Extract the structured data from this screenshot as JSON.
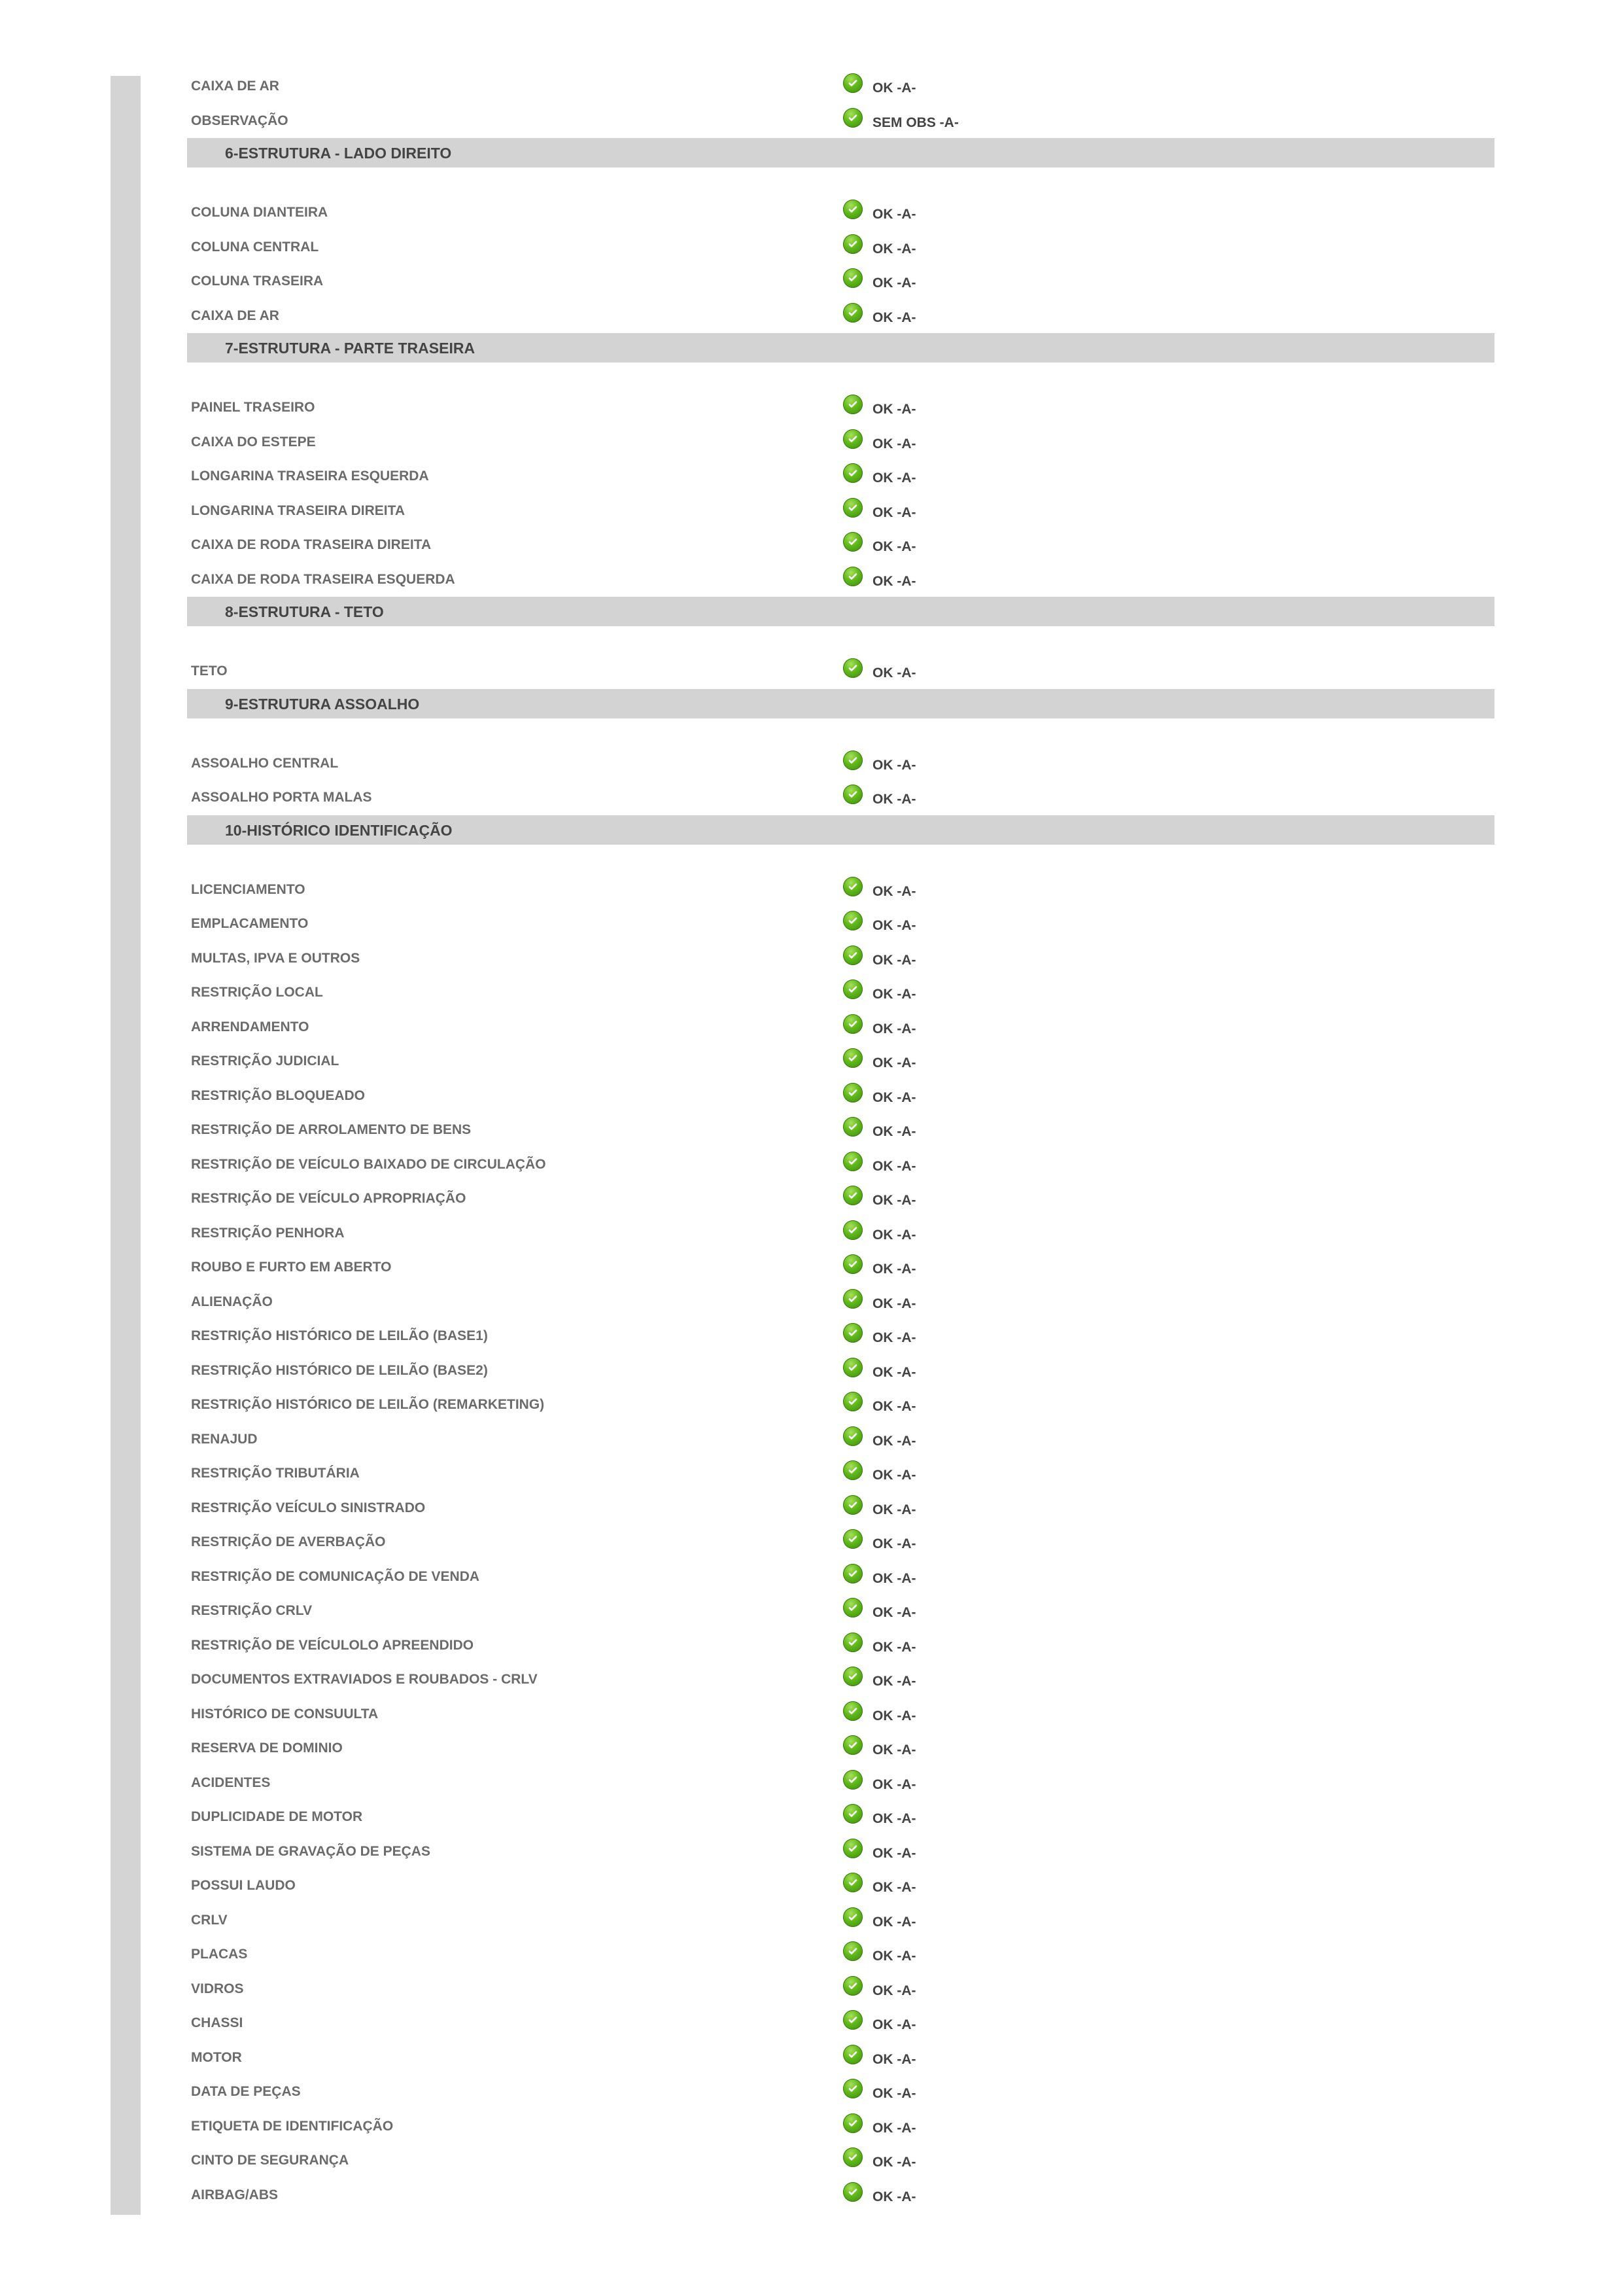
{
  "colors": {
    "section_bg": "#d3d3d3",
    "ok_icon": "#5fb819",
    "label": "#6b6b6b",
    "value": "#444444"
  },
  "icon": "check-circle-icon",
  "blocks": [
    {
      "type": "row",
      "label": "CAIXA DE AR",
      "value": "OK -A-"
    },
    {
      "type": "row",
      "label": "OBSERVAÇÃO",
      "value": "SEM OBS -A-"
    },
    {
      "type": "section",
      "title": "6-ESTRUTURA - LADO DIREITO"
    },
    {
      "type": "row",
      "label": "COLUNA DIANTEIRA",
      "value": "OK -A-"
    },
    {
      "type": "row",
      "label": "COLUNA CENTRAL",
      "value": "OK -A-"
    },
    {
      "type": "row",
      "label": "COLUNA TRASEIRA",
      "value": "OK -A-"
    },
    {
      "type": "row",
      "label": "CAIXA DE AR",
      "value": "OK -A-"
    },
    {
      "type": "section",
      "title": "7-ESTRUTURA - PARTE TRASEIRA"
    },
    {
      "type": "row",
      "label": "PAINEL TRASEIRO",
      "value": "OK -A-"
    },
    {
      "type": "row",
      "label": "CAIXA DO ESTEPE",
      "value": "OK -A-"
    },
    {
      "type": "row",
      "label": "LONGARINA TRASEIRA ESQUERDA",
      "value": "OK -A-"
    },
    {
      "type": "row",
      "label": "LONGARINA TRASEIRA DIREITA",
      "value": "OK -A-"
    },
    {
      "type": "row",
      "label": "CAIXA DE RODA TRASEIRA DIREITA",
      "value": "OK -A-"
    },
    {
      "type": "row",
      "label": "CAIXA DE RODA TRASEIRA ESQUERDA",
      "value": "OK -A-"
    },
    {
      "type": "section",
      "title": "8-ESTRUTURA - TETO"
    },
    {
      "type": "row",
      "label": "TETO",
      "value": "OK -A-"
    },
    {
      "type": "section",
      "title": "9-ESTRUTURA ASSOALHO"
    },
    {
      "type": "row",
      "label": "ASSOALHO CENTRAL",
      "value": "OK -A-"
    },
    {
      "type": "row",
      "label": "ASSOALHO PORTA MALAS",
      "value": "OK -A-"
    },
    {
      "type": "section",
      "title": "10-HISTÓRICO IDENTIFICAÇÃO"
    },
    {
      "type": "row",
      "label": "LICENCIAMENTO",
      "value": "OK -A-"
    },
    {
      "type": "row",
      "label": "EMPLACAMENTO",
      "value": "OK -A-"
    },
    {
      "type": "row",
      "label": "MULTAS, IPVA E OUTROS",
      "value": "OK -A-"
    },
    {
      "type": "row",
      "label": "RESTRIÇÃO LOCAL",
      "value": "OK -A-"
    },
    {
      "type": "row",
      "label": "ARRENDAMENTO",
      "value": "OK -A-"
    },
    {
      "type": "row",
      "label": "RESTRIÇÃO JUDICIAL",
      "value": "OK -A-"
    },
    {
      "type": "row",
      "label": "RESTRIÇÃO BLOQUEADO",
      "value": "OK -A-"
    },
    {
      "type": "row",
      "label": "RESTRIÇÃO DE ARROLAMENTO DE BENS",
      "value": "OK -A-"
    },
    {
      "type": "row",
      "label": "RESTRIÇÃO DE VEÍCULO BAIXADO DE CIRCULAÇÃO",
      "value": "OK -A-"
    },
    {
      "type": "row",
      "label": "RESTRIÇÃO DE VEÍCULO APROPRIAÇÃO",
      "value": "OK -A-"
    },
    {
      "type": "row",
      "label": "RESTRIÇÃO PENHORA",
      "value": "OK -A-"
    },
    {
      "type": "row",
      "label": "ROUBO E FURTO EM ABERTO",
      "value": "OK -A-"
    },
    {
      "type": "row",
      "label": "ALIENAÇÃO",
      "value": "OK -A-"
    },
    {
      "type": "row",
      "label": "RESTRIÇÃO HISTÓRICO DE LEILÃO (BASE1)",
      "value": "OK -A-"
    },
    {
      "type": "row",
      "label": "RESTRIÇÃO HISTÓRICO DE LEILÃO (BASE2)",
      "value": "OK -A-"
    },
    {
      "type": "row",
      "label": "RESTRIÇÃO HISTÓRICO DE LEILÃO (REMARKETING)",
      "value": "OK -A-"
    },
    {
      "type": "row",
      "label": "RENAJUD",
      "value": "OK -A-"
    },
    {
      "type": "row",
      "label": "RESTRIÇÃO TRIBUTÁRIA",
      "value": "OK -A-"
    },
    {
      "type": "row",
      "label": "RESTRIÇÃO VEÍCULO SINISTRADO",
      "value": "OK -A-"
    },
    {
      "type": "row",
      "label": "RESTRIÇÃO DE AVERBAÇÃO",
      "value": "OK -A-"
    },
    {
      "type": "row",
      "label": "RESTRIÇÃO DE COMUNICAÇÃO DE VENDA",
      "value": "OK -A-"
    },
    {
      "type": "row",
      "label": "RESTRIÇÃO CRLV",
      "value": "OK -A-"
    },
    {
      "type": "row",
      "label": "RESTRIÇÃO DE VEÍCULOLO APREENDIDO",
      "value": "OK -A-"
    },
    {
      "type": "row",
      "label": "DOCUMENTOS EXTRAVIADOS E ROUBADOS - CRLV",
      "value": "OK -A-"
    },
    {
      "type": "row",
      "label": "HISTÓRICO DE CONSUULTA",
      "value": "OK -A-"
    },
    {
      "type": "row",
      "label": "RESERVA DE DOMINIO",
      "value": "OK -A-"
    },
    {
      "type": "row",
      "label": "ACIDENTES",
      "value": "OK -A-"
    },
    {
      "type": "row",
      "label": "DUPLICIDADE DE MOTOR",
      "value": "OK -A-"
    },
    {
      "type": "row",
      "label": "SISTEMA DE GRAVAÇÃO DE PEÇAS",
      "value": "OK -A-"
    },
    {
      "type": "row",
      "label": "POSSUI LAUDO",
      "value": "OK -A-"
    },
    {
      "type": "row",
      "label": "CRLV",
      "value": "OK -A-"
    },
    {
      "type": "row",
      "label": "PLACAS",
      "value": "OK -A-"
    },
    {
      "type": "row",
      "label": "VIDROS",
      "value": "OK -A-"
    },
    {
      "type": "row",
      "label": "CHASSI",
      "value": "OK -A-"
    },
    {
      "type": "row",
      "label": "MOTOR",
      "value": "OK -A-"
    },
    {
      "type": "row",
      "label": "DATA DE PEÇAS",
      "value": "OK -A-"
    },
    {
      "type": "row",
      "label": "ETIQUETA DE IDENTIFICAÇÃO",
      "value": "OK -A-"
    },
    {
      "type": "row",
      "label": "CINTO DE SEGURANÇA",
      "value": "OK -A-"
    },
    {
      "type": "row",
      "label": "AIRBAG/ABS",
      "value": "OK -A-"
    }
  ]
}
